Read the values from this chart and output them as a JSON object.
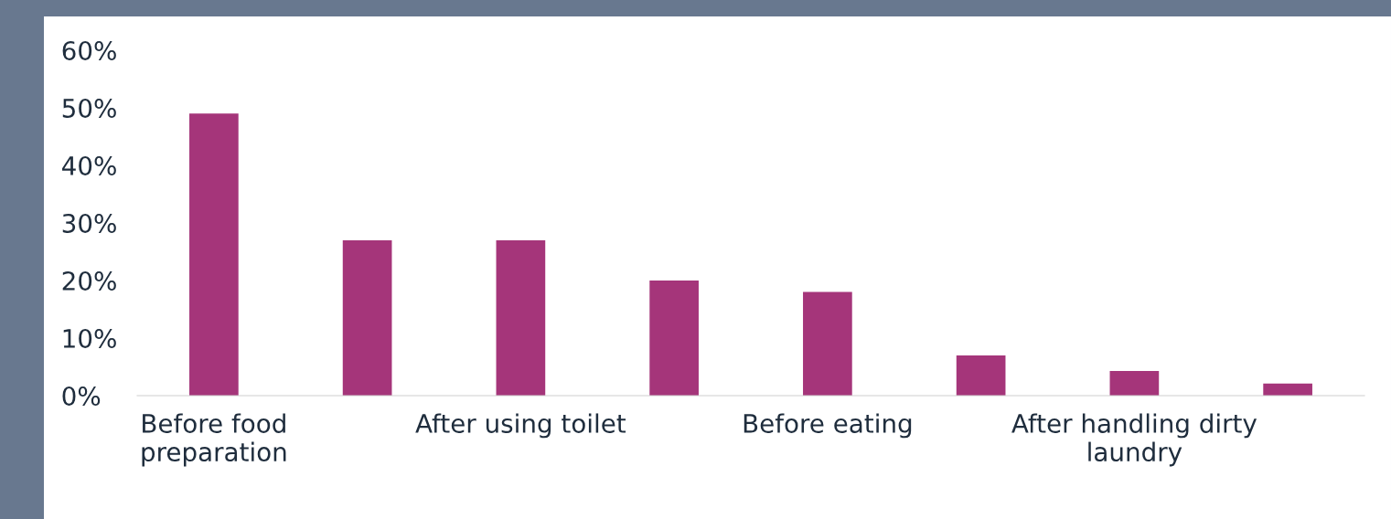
{
  "chart_data": {
    "type": "bar",
    "categories": [
      "Before food preparation",
      null,
      "After using toilet",
      null,
      "Before eating",
      null,
      "After handling dirty laundry",
      null
    ],
    "values": [
      49,
      27,
      27,
      20,
      18,
      7,
      4.3,
      2.1
    ],
    "color": "#a5357a",
    "ylim": [
      0,
      60
    ],
    "yticks": [
      {
        "value": 0,
        "label": "0%"
      },
      {
        "value": 10,
        "label": "10%"
      },
      {
        "value": 20,
        "label": "20%"
      },
      {
        "value": 30,
        "label": "30%"
      },
      {
        "value": 40,
        "label": "40%"
      },
      {
        "value": 50,
        "label": "50%"
      },
      {
        "value": 60,
        "label": "60%"
      }
    ],
    "grid": false,
    "legend": false
  }
}
